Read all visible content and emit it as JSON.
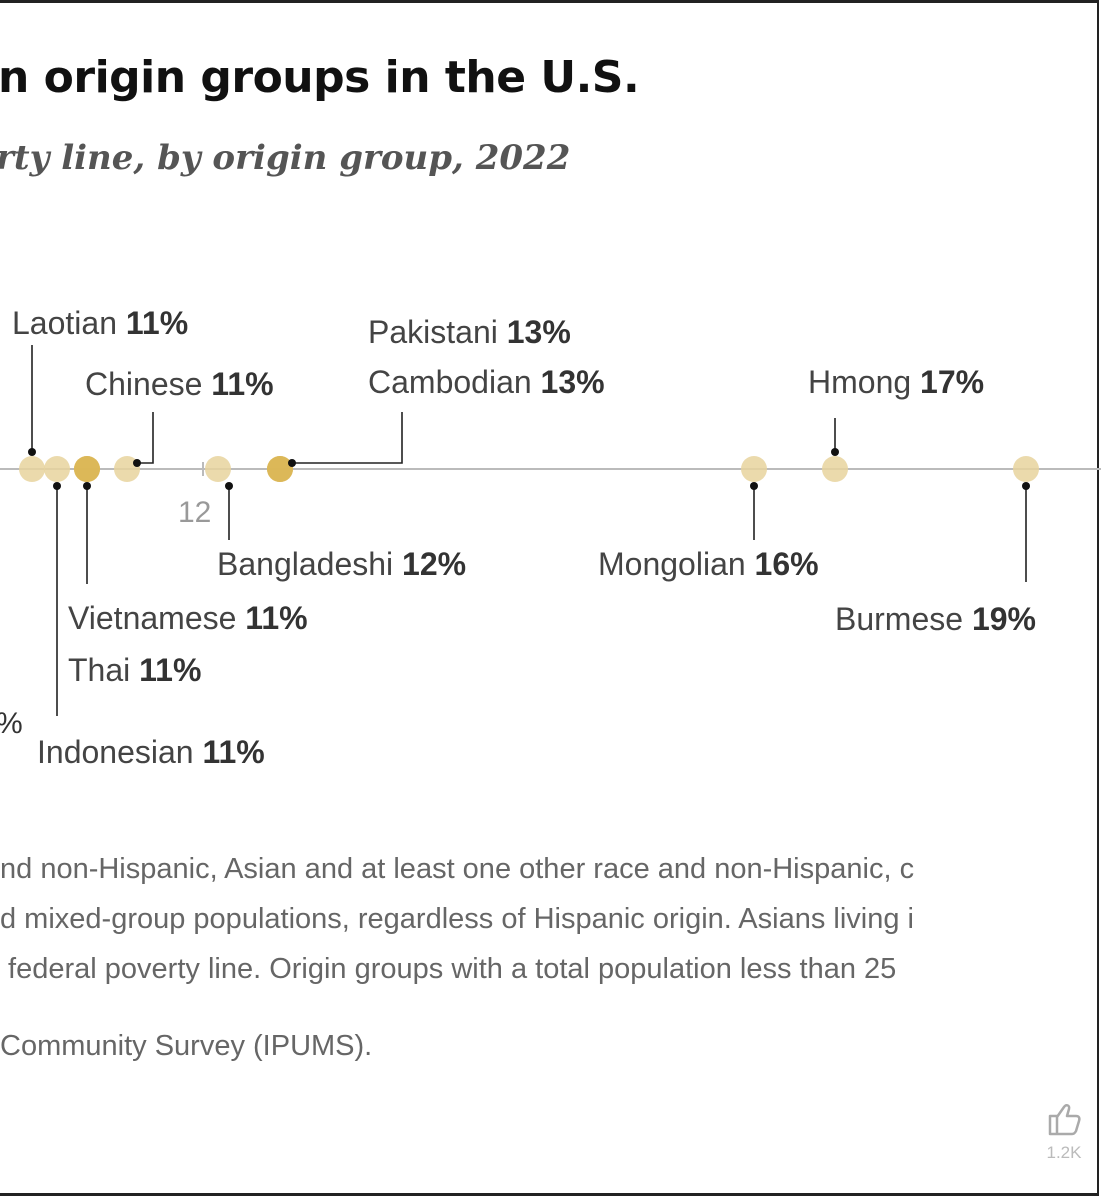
{
  "title": "n origin groups in the U.S.",
  "subtitle": "rty line, by origin group, 2022",
  "chart_data": {
    "type": "scatter",
    "title": "n origin groups in the U.S.",
    "subtitle": "rty line, by origin group, 2022",
    "xlim": [
      9.9,
      19.8
    ],
    "axis_tick": {
      "value": 12,
      "label": "12"
    },
    "edge_label": "%",
    "points": [
      {
        "name": "Laotian",
        "value": 11,
        "value_label": "11%"
      },
      {
        "name": "Indonesian",
        "value": 11,
        "value_label": "11%"
      },
      {
        "name": "Vietnamese",
        "value": 11,
        "value_label": "11%"
      },
      {
        "name": "Thai",
        "value": 11,
        "value_label": "11%"
      },
      {
        "name": "Chinese",
        "value": 11,
        "value_label": "11%"
      },
      {
        "name": "Bangladeshi",
        "value": 12,
        "value_label": "12%"
      },
      {
        "name": "Pakistani",
        "value": 13,
        "value_label": "13%"
      },
      {
        "name": "Cambodian",
        "value": 13,
        "value_label": "13%"
      },
      {
        "name": "Mongolian",
        "value": 16,
        "value_label": "16%"
      },
      {
        "name": "Hmong",
        "value": 17,
        "value_label": "17%"
      },
      {
        "name": "Burmese",
        "value": 19,
        "value_label": "19%"
      }
    ]
  },
  "notes": [
    "nd non-Hispanic, Asian and at least one other race and non-Hispanic, c",
    "d mixed-group populations, regardless of Hispanic origin. Asians living i",
    " federal poverty line. Origin groups with a total population less than 25"
  ],
  "source": "Community Survey (IPUMS).",
  "likes": "1.2K",
  "colors": {
    "dot_light": "#e8d49e",
    "dot_dark": "#dcb756",
    "axis": "#bbbbbb",
    "leader": "#111111"
  }
}
